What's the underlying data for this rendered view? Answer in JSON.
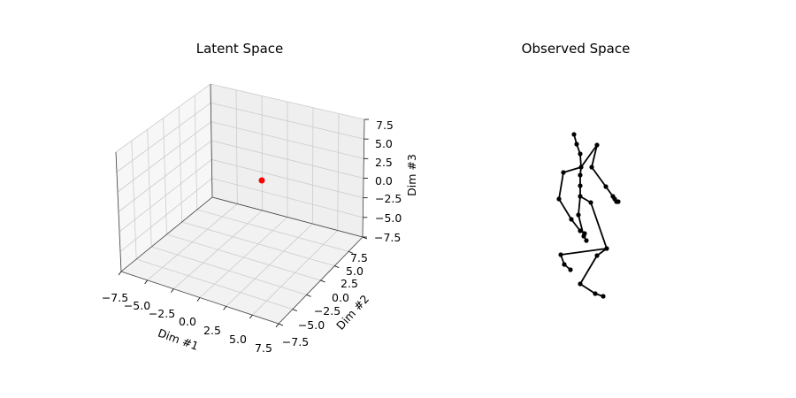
{
  "chart_data": [
    {
      "type": "scatter",
      "title": "Latent Space",
      "projection": "3d",
      "grid": true,
      "xlabel": "Dim #1",
      "ylabel": "Dim #2",
      "zlabel": "Dim #3",
      "xlim": [
        -7.5,
        7.5
      ],
      "ylim": [
        -7.5,
        7.5
      ],
      "zlim": [
        -7.5,
        7.5
      ],
      "ticks": [
        "−7.5",
        "−5.0",
        "−2.5",
        "0.0",
        "2.5",
        "5.0",
        "7.5"
      ],
      "points": [
        {
          "x": 0,
          "y": 0,
          "z": 0,
          "color": "#ff0000"
        }
      ]
    },
    {
      "type": "line",
      "title": "Observed Space",
      "axes_visible": false,
      "color": "#000000",
      "joints": [
        [
          649,
          152
        ],
        [
          652,
          163
        ],
        [
          656,
          174
        ],
        [
          657,
          189
        ],
        [
          656,
          198
        ],
        [
          656,
          210
        ],
        [
          656,
          222
        ],
        [
          654,
          243
        ],
        [
          660,
          267
        ],
        [
          663,
          272
        ],
        [
          675,
          164
        ],
        [
          669,
          189
        ],
        [
          685,
          211
        ],
        [
          693,
          222
        ],
        [
          695,
          225
        ],
        [
          697,
          228
        ],
        [
          699,
          228
        ],
        [
          637,
          195
        ],
        [
          632,
          225
        ],
        [
          646,
          248
        ],
        [
          656,
          261
        ],
        [
          661,
          264
        ],
        [
          668,
          229
        ],
        [
          686,
          281
        ],
        [
          675,
          289
        ],
        [
          656,
          321
        ],
        [
          673,
          332
        ],
        [
          682,
          335
        ],
        [
          634,
          288
        ],
        [
          638,
          299
        ],
        [
          645,
          305
        ]
      ],
      "bones": [
        [
          0,
          1
        ],
        [
          1,
          2
        ],
        [
          2,
          3
        ],
        [
          3,
          4
        ],
        [
          4,
          5
        ],
        [
          5,
          6
        ],
        [
          6,
          7
        ],
        [
          7,
          8
        ],
        [
          8,
          9
        ],
        [
          3,
          10
        ],
        [
          10,
          11
        ],
        [
          11,
          12
        ],
        [
          12,
          13
        ],
        [
          13,
          14
        ],
        [
          14,
          15
        ],
        [
          15,
          16
        ],
        [
          3,
          17
        ],
        [
          17,
          18
        ],
        [
          18,
          19
        ],
        [
          19,
          20
        ],
        [
          20,
          21
        ],
        [
          6,
          22
        ],
        [
          22,
          23
        ],
        [
          23,
          24
        ],
        [
          24,
          25
        ],
        [
          25,
          26
        ],
        [
          26,
          27
        ],
        [
          23,
          28
        ],
        [
          28,
          29
        ],
        [
          29,
          30
        ]
      ]
    }
  ]
}
